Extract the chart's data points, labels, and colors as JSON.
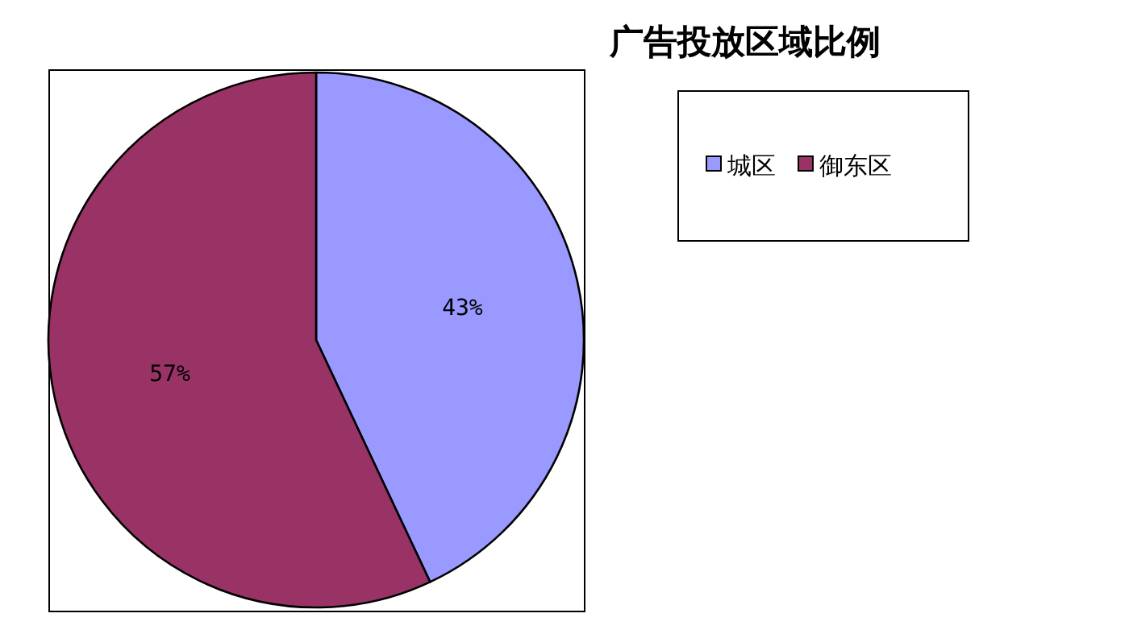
{
  "chart_data": {
    "type": "pie",
    "title": "广告投放区域比例",
    "categories": [
      "城区",
      "御东区"
    ],
    "values": [
      43,
      57
    ],
    "colors": [
      "#9999ff",
      "#993366"
    ],
    "value_labels": [
      "43%",
      "57%"
    ],
    "legend": "top right"
  }
}
